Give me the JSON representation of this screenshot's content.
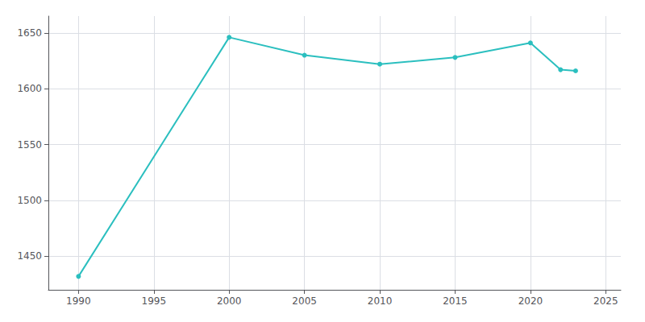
{
  "chart_data": {
    "type": "line",
    "x": [
      1990,
      2000,
      2005,
      2010,
      2015,
      2020,
      2022,
      2023
    ],
    "values": [
      1432,
      1646,
      1630,
      1622,
      1628,
      1641,
      1617,
      1616
    ],
    "color": "#2bbfbf",
    "marker": "circle",
    "xlim": [
      1988,
      2026
    ],
    "ylim": [
      1420,
      1665
    ],
    "xticks": [
      1990,
      1995,
      2000,
      2005,
      2010,
      2015,
      2020,
      2025
    ],
    "yticks": [
      1450,
      1500,
      1550,
      1600,
      1650
    ],
    "grid": true
  }
}
